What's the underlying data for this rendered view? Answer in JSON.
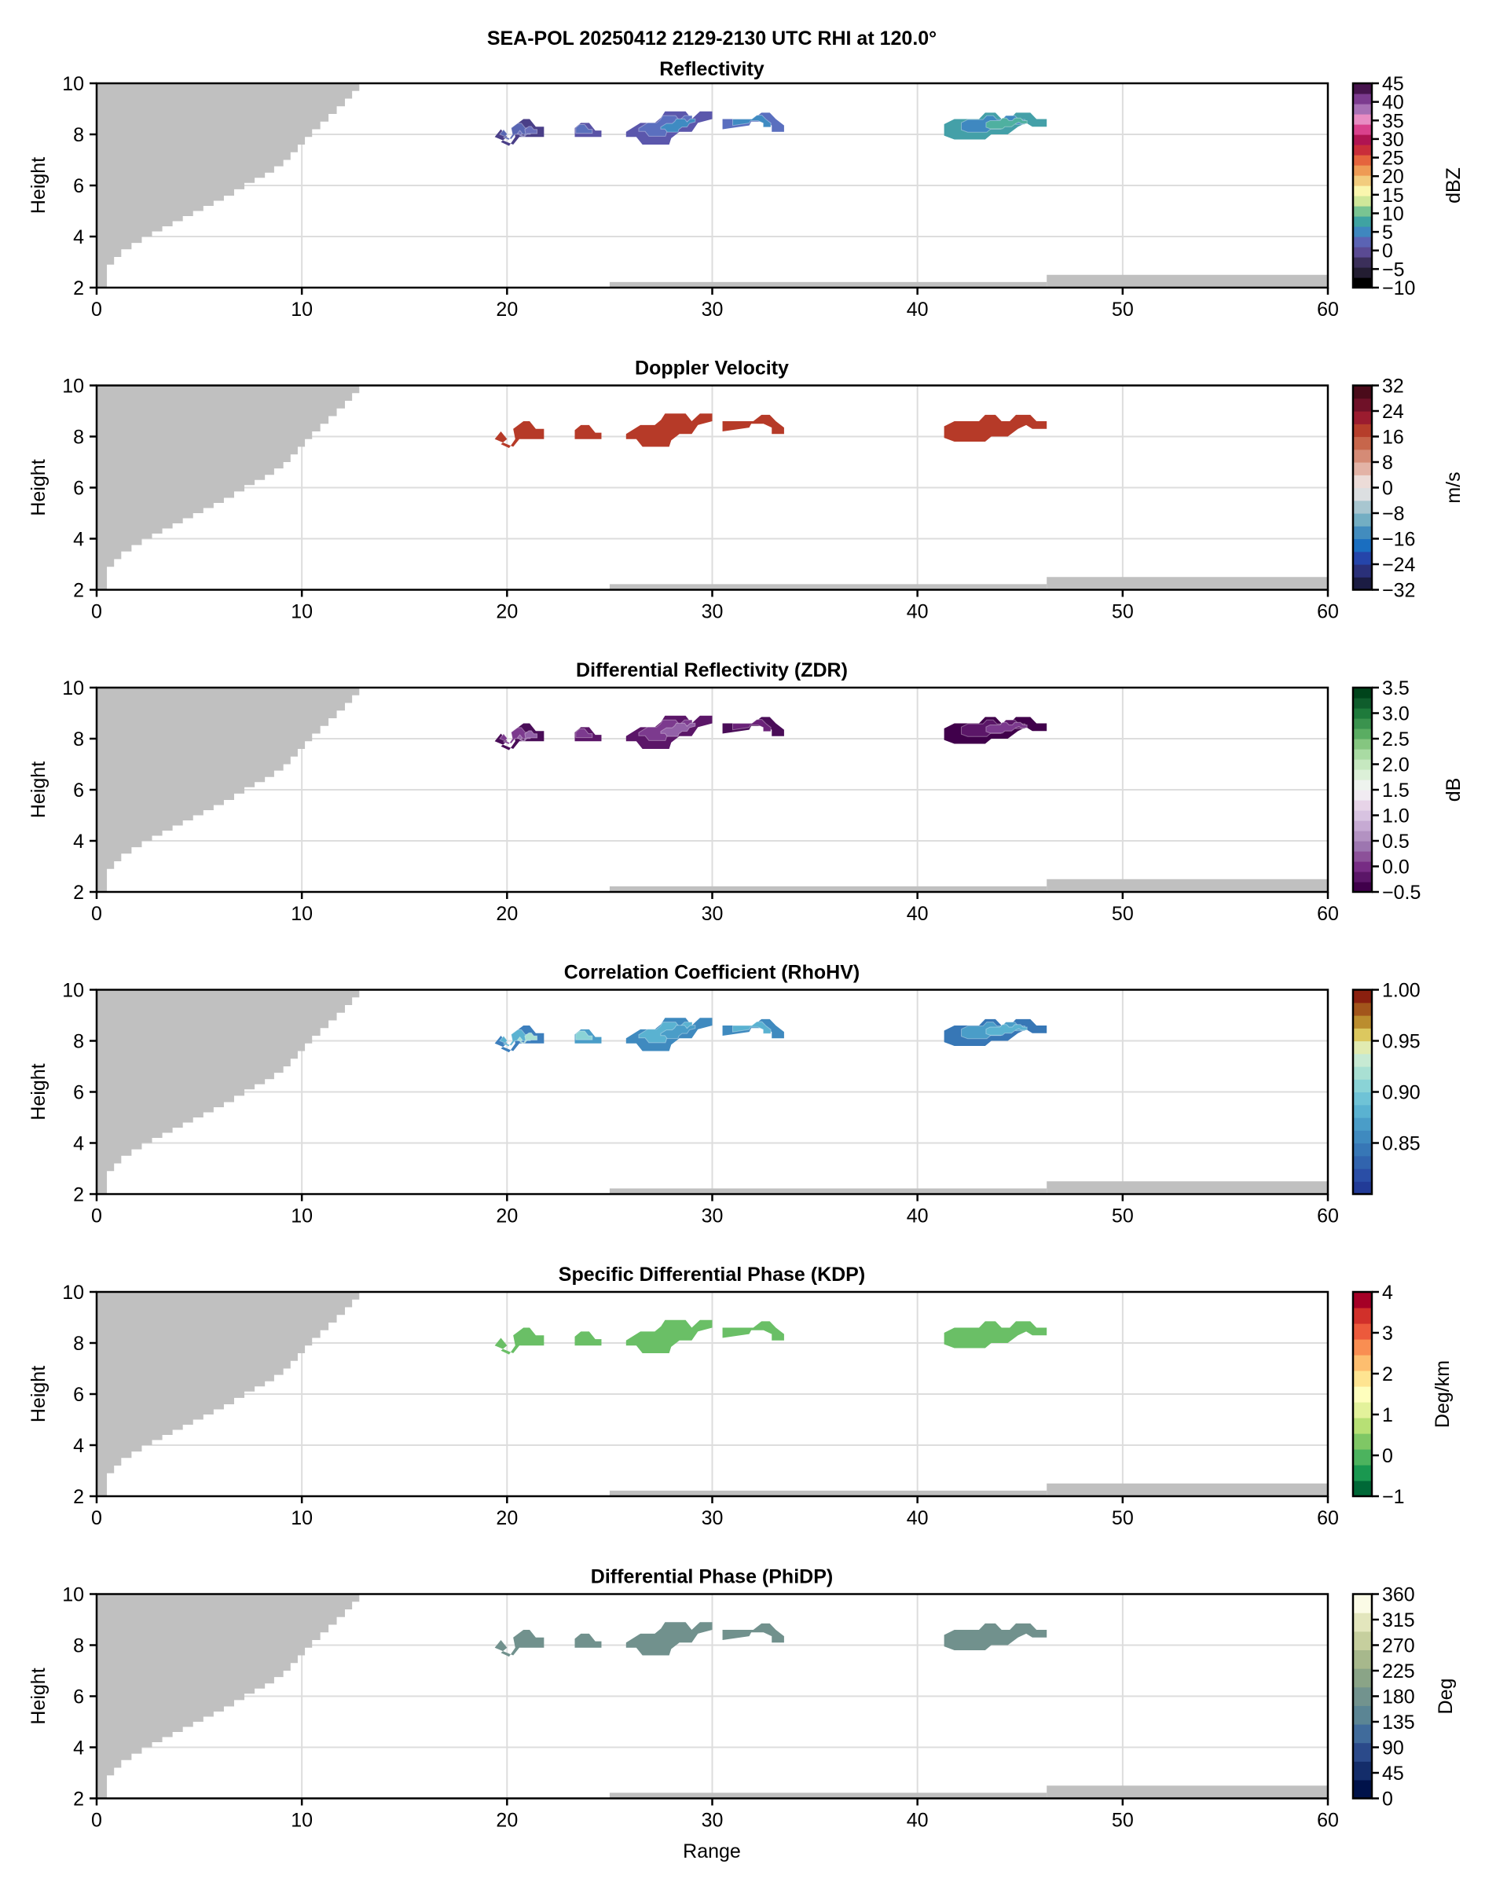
{
  "chart_data": {
    "type": "heatmap",
    "figure_title": "SEA-POL 20250412 2129-2130 UTC RHI at 120.0°",
    "xlabel": "Range",
    "ylabel": "Height",
    "xlim": [
      0,
      60
    ],
    "ylim": [
      2,
      10
    ],
    "xticks": [
      "0",
      "10",
      "20",
      "30",
      "40",
      "50",
      "60"
    ],
    "yticks": [
      "2",
      "4",
      "6",
      "8",
      "10"
    ],
    "grid": true,
    "masked_color": "#c0c0c0",
    "blind_zone": {
      "description": "grey masked region above lowest beam near radar (stepped wedge)",
      "steps": [
        [
          0.0,
          2.0
        ],
        [
          0.5,
          2.9
        ],
        [
          1.2,
          3.5
        ],
        [
          2.2,
          4.0
        ],
        [
          3.2,
          4.4
        ],
        [
          4.2,
          4.8
        ],
        [
          5.2,
          5.2
        ],
        [
          6.2,
          5.6
        ],
        [
          7.2,
          6.1
        ],
        [
          8.2,
          6.5
        ],
        [
          9.1,
          7.0
        ],
        [
          9.8,
          7.6
        ],
        [
          10.5,
          8.2
        ],
        [
          11.3,
          8.8
        ],
        [
          12.1,
          9.4
        ],
        [
          12.8,
          10.0
        ]
      ]
    },
    "surface_mask": [
      {
        "x_start": 25.0,
        "x_end": 46.3,
        "height_top": 2.22
      },
      {
        "x_start": 46.3,
        "x_end": 60.0,
        "height_top": 2.5
      }
    ],
    "echo_cells": [
      {
        "name": "cell-1",
        "outline": [
          [
            19.4,
            7.9
          ],
          [
            19.7,
            8.2
          ],
          [
            20.0,
            7.9
          ],
          [
            19.7,
            7.7
          ],
          [
            20.1,
            7.55
          ],
          [
            20.4,
            7.9
          ],
          [
            20.3,
            8.3
          ],
          [
            20.8,
            8.6
          ],
          [
            21.1,
            8.6
          ],
          [
            21.4,
            8.3
          ],
          [
            21.8,
            8.3
          ],
          [
            21.8,
            7.9
          ],
          [
            21.2,
            7.9
          ],
          [
            20.6,
            7.9
          ],
          [
            20.3,
            7.6
          ]
        ]
      },
      {
        "name": "cell-2",
        "outline": [
          [
            23.3,
            7.9
          ],
          [
            23.3,
            8.25
          ],
          [
            23.6,
            8.45
          ],
          [
            24.0,
            8.45
          ],
          [
            24.3,
            8.15
          ],
          [
            24.6,
            8.15
          ],
          [
            24.6,
            7.9
          ],
          [
            23.9,
            7.9
          ]
        ]
      },
      {
        "name": "cell-3",
        "outline": [
          [
            25.8,
            7.9
          ],
          [
            25.8,
            8.1
          ],
          [
            26.5,
            8.45
          ],
          [
            27.2,
            8.45
          ],
          [
            27.5,
            8.65
          ],
          [
            27.7,
            8.9
          ],
          [
            28.7,
            8.9
          ],
          [
            29.0,
            8.6
          ],
          [
            29.4,
            8.9
          ],
          [
            30.0,
            8.9
          ],
          [
            30.0,
            8.6
          ],
          [
            29.3,
            8.45
          ],
          [
            29.0,
            8.1
          ],
          [
            28.4,
            8.1
          ],
          [
            28.0,
            7.85
          ],
          [
            27.9,
            7.6
          ],
          [
            26.6,
            7.6
          ],
          [
            26.3,
            7.9
          ]
        ]
      },
      {
        "name": "cell-4",
        "outline": [
          [
            30.5,
            8.2
          ],
          [
            30.5,
            8.6
          ],
          [
            32.0,
            8.6
          ],
          [
            32.4,
            8.85
          ],
          [
            32.8,
            8.85
          ],
          [
            33.1,
            8.6
          ],
          [
            33.5,
            8.35
          ],
          [
            33.5,
            8.1
          ],
          [
            32.9,
            8.1
          ],
          [
            32.9,
            8.35
          ],
          [
            32.5,
            8.5
          ],
          [
            31.9,
            8.5
          ],
          [
            31.8,
            8.35
          ]
        ]
      },
      {
        "name": "cell-5",
        "outline": [
          [
            41.3,
            7.95
          ],
          [
            41.3,
            8.4
          ],
          [
            41.8,
            8.6
          ],
          [
            43.0,
            8.6
          ],
          [
            43.3,
            8.85
          ],
          [
            43.8,
            8.85
          ],
          [
            44.1,
            8.6
          ],
          [
            44.5,
            8.6
          ],
          [
            44.8,
            8.85
          ],
          [
            45.5,
            8.85
          ],
          [
            45.8,
            8.6
          ],
          [
            46.3,
            8.6
          ],
          [
            46.3,
            8.3
          ],
          [
            45.6,
            8.3
          ],
          [
            45.3,
            8.45
          ],
          [
            44.9,
            8.3
          ],
          [
            44.4,
            8.0
          ],
          [
            43.6,
            8.0
          ],
          [
            43.3,
            7.8
          ],
          [
            41.8,
            7.8
          ]
        ]
      }
    ],
    "panels": [
      {
        "title": "Reflectivity",
        "field": "reflectivity",
        "units": "dBZ",
        "clim": [
          -10,
          45
        ],
        "cbar_ticks": [
          "45",
          "40",
          "35",
          "30",
          "25",
          "20",
          "15",
          "10",
          "5",
          "0",
          "−5",
          "−10"
        ],
        "cbar_tick_values": [
          45,
          40,
          35,
          30,
          25,
          20,
          15,
          10,
          5,
          0,
          -5,
          -10
        ],
        "colormap": [
          "#000000",
          "#231d32",
          "#3b2f5a",
          "#5a4a93",
          "#5b63b4",
          "#3f87bf",
          "#3fa3a2",
          "#79c492",
          "#cfe79a",
          "#faf6ae",
          "#f2cc7e",
          "#ee9b55",
          "#e5643d",
          "#c92d3a",
          "#b01452",
          "#d9418d",
          "#e88cc3",
          "#a870b5",
          "#7c3b8f",
          "#47144e"
        ],
        "cell_fills": {
          "cell-1": [
            "#4a3f88",
            "#5966b3",
            "#6a6fbc"
          ],
          "cell-2": [
            "#5a53a6",
            "#5a6fbc"
          ],
          "cell-3": [
            "#5b57ac",
            "#5b6fbf",
            "#3f8bc2"
          ],
          "cell-4": [
            "#5a6fbf",
            "#3f8bc2"
          ],
          "cell-5": [
            "#44a0a8",
            "#3f88c0",
            "#4fb0a0"
          ]
        },
        "estimated_range": [
          -3,
          10
        ]
      },
      {
        "title": "Doppler Velocity",
        "field": "velocity",
        "units": "m/s",
        "clim": [
          -32,
          32
        ],
        "cbar_ticks": [
          "32",
          "24",
          "16",
          "8",
          "0",
          "−8",
          "−16",
          "−24",
          "−32"
        ],
        "cbar_tick_values": [
          32,
          24,
          16,
          8,
          0,
          -8,
          -16,
          -24,
          -32
        ],
        "colormap": [
          "#1b1c43",
          "#2a3079",
          "#2545aa",
          "#1a6ec0",
          "#428cbe",
          "#73aec3",
          "#a8c6d0",
          "#dcdfe1",
          "#ecdcd8",
          "#e3b3a6",
          "#d58b76",
          "#c7664b",
          "#b63e2b",
          "#9b1c2f",
          "#6f1128",
          "#4a0b1a"
        ],
        "cell_fills": {
          "cell-1": [
            "#b63a28"
          ],
          "cell-2": [
            "#b63a28"
          ],
          "cell-3": [
            "#b63a28"
          ],
          "cell-4": [
            "#b63a28"
          ],
          "cell-5": [
            "#b63a28"
          ]
        },
        "estimated_range": [
          16,
          20
        ]
      },
      {
        "title": "Differential Reflectivity (ZDR)",
        "field": "zdr",
        "units": "dB",
        "clim": [
          -0.5,
          3.5
        ],
        "cbar_ticks": [
          "3.5",
          "3.0",
          "2.5",
          "2.0",
          "1.5",
          "1.0",
          "0.5",
          "0.0",
          "−0.5"
        ],
        "cbar_tick_values": [
          3.5,
          3.0,
          2.5,
          2.0,
          1.5,
          1.0,
          0.5,
          0.0,
          -0.5
        ],
        "colormap": [
          "#40004b",
          "#5b1668",
          "#772c84",
          "#8c5199",
          "#9d76b0",
          "#b392c2",
          "#c6aad3",
          "#d8c3e1",
          "#e7d4e8",
          "#f1ebf2",
          "#eef3ee",
          "#dcf0d8",
          "#c6e8c0",
          "#a9dba3",
          "#85c680",
          "#5aad62",
          "#3a934e",
          "#1e7a3b",
          "#0f5d2c",
          "#00441b"
        ],
        "cell_fills": {
          "cell-1": [
            "#4a0d58",
            "#7c3a8e",
            "#9361a8"
          ],
          "cell-2": [
            "#5b1668",
            "#7c3a8e"
          ],
          "cell-3": [
            "#5b1668",
            "#7c3a8e",
            "#9361a8"
          ],
          "cell-4": [
            "#4a0d58",
            "#6a2278"
          ],
          "cell-5": [
            "#40004b",
            "#5b1668",
            "#7c3a8e"
          ]
        },
        "estimated_range": [
          -0.5,
          0.5
        ]
      },
      {
        "title": "Correlation Coefficient (RhoHV)",
        "field": "rhohv",
        "units": "",
        "clim": [
          0.8,
          1.0
        ],
        "cbar_ticks": [
          "1.00",
          "0.95",
          "0.90",
          "0.85"
        ],
        "cbar_tick_values": [
          1.0,
          0.95,
          0.9,
          0.85
        ],
        "colormap": [
          "#223b97",
          "#2a4ea6",
          "#3164ae",
          "#3777b6",
          "#3f8abf",
          "#4a9dc8",
          "#5ab2d1",
          "#6fc3d6",
          "#8ad3d6",
          "#a9e0d3",
          "#c7ead3",
          "#e1ebb1",
          "#dcc85f",
          "#bb8d2e",
          "#a2551b",
          "#8a200f"
        ],
        "cell_fills": {
          "cell-1": [
            "#3d7fbd",
            "#5ab2d1",
            "#a9e0d3"
          ],
          "cell-2": [
            "#4a9dc8",
            "#8ad3d6"
          ],
          "cell-3": [
            "#3f8abf",
            "#5ab2d1",
            "#4a9dc8"
          ],
          "cell-4": [
            "#3f8abf",
            "#5ab2d1"
          ],
          "cell-5": [
            "#3777b6",
            "#4a9dc8",
            "#5ab2d1"
          ]
        },
        "estimated_range": [
          0.84,
          0.94
        ]
      },
      {
        "title": "Specific Differential Phase (KDP)",
        "field": "kdp",
        "units": "Deg/km",
        "clim": [
          -1,
          4
        ],
        "cbar_ticks": [
          "4",
          "3",
          "2",
          "1",
          "0",
          "−1"
        ],
        "cbar_tick_values": [
          4,
          3,
          2,
          1,
          0,
          -1
        ],
        "colormap": [
          "#006837",
          "#1a9850",
          "#4cb35e",
          "#7fc765",
          "#b7e075",
          "#e3f29b",
          "#fefebd",
          "#fee491",
          "#fdbe6f",
          "#f98e52",
          "#ec5a3c",
          "#d1302a",
          "#a50026"
        ],
        "cell_fills": {
          "cell-1": [
            "#6abf66"
          ],
          "cell-2": [
            "#6abf66"
          ],
          "cell-3": [
            "#6abf66"
          ],
          "cell-4": [
            "#6abf66"
          ],
          "cell-5": [
            "#6abf66"
          ]
        },
        "estimated_range": [
          0,
          0
        ]
      },
      {
        "title": "Differential Phase (PhiDP)",
        "field": "phidp",
        "units": "Deg",
        "clim": [
          0,
          360
        ],
        "cbar_ticks": [
          "360",
          "315",
          "270",
          "225",
          "180",
          "135",
          "90",
          "45",
          "0"
        ],
        "cbar_tick_values": [
          360,
          315,
          270,
          225,
          180,
          135,
          90,
          45,
          0
        ],
        "colormap": [
          "#00124a",
          "#142d6a",
          "#2b4a8a",
          "#406b9b",
          "#5b8594",
          "#72938e",
          "#8aa487",
          "#a7b88c",
          "#c6cf9e",
          "#e3e6bd",
          "#fbfbe6"
        ],
        "cell_fills": {
          "cell-1": [
            "#71918d"
          ],
          "cell-2": [
            "#71918d"
          ],
          "cell-3": [
            "#71918d"
          ],
          "cell-4": [
            "#71918d"
          ],
          "cell-5": [
            "#71918d"
          ]
        },
        "estimated_range": [
          195,
          205
        ]
      }
    ]
  }
}
